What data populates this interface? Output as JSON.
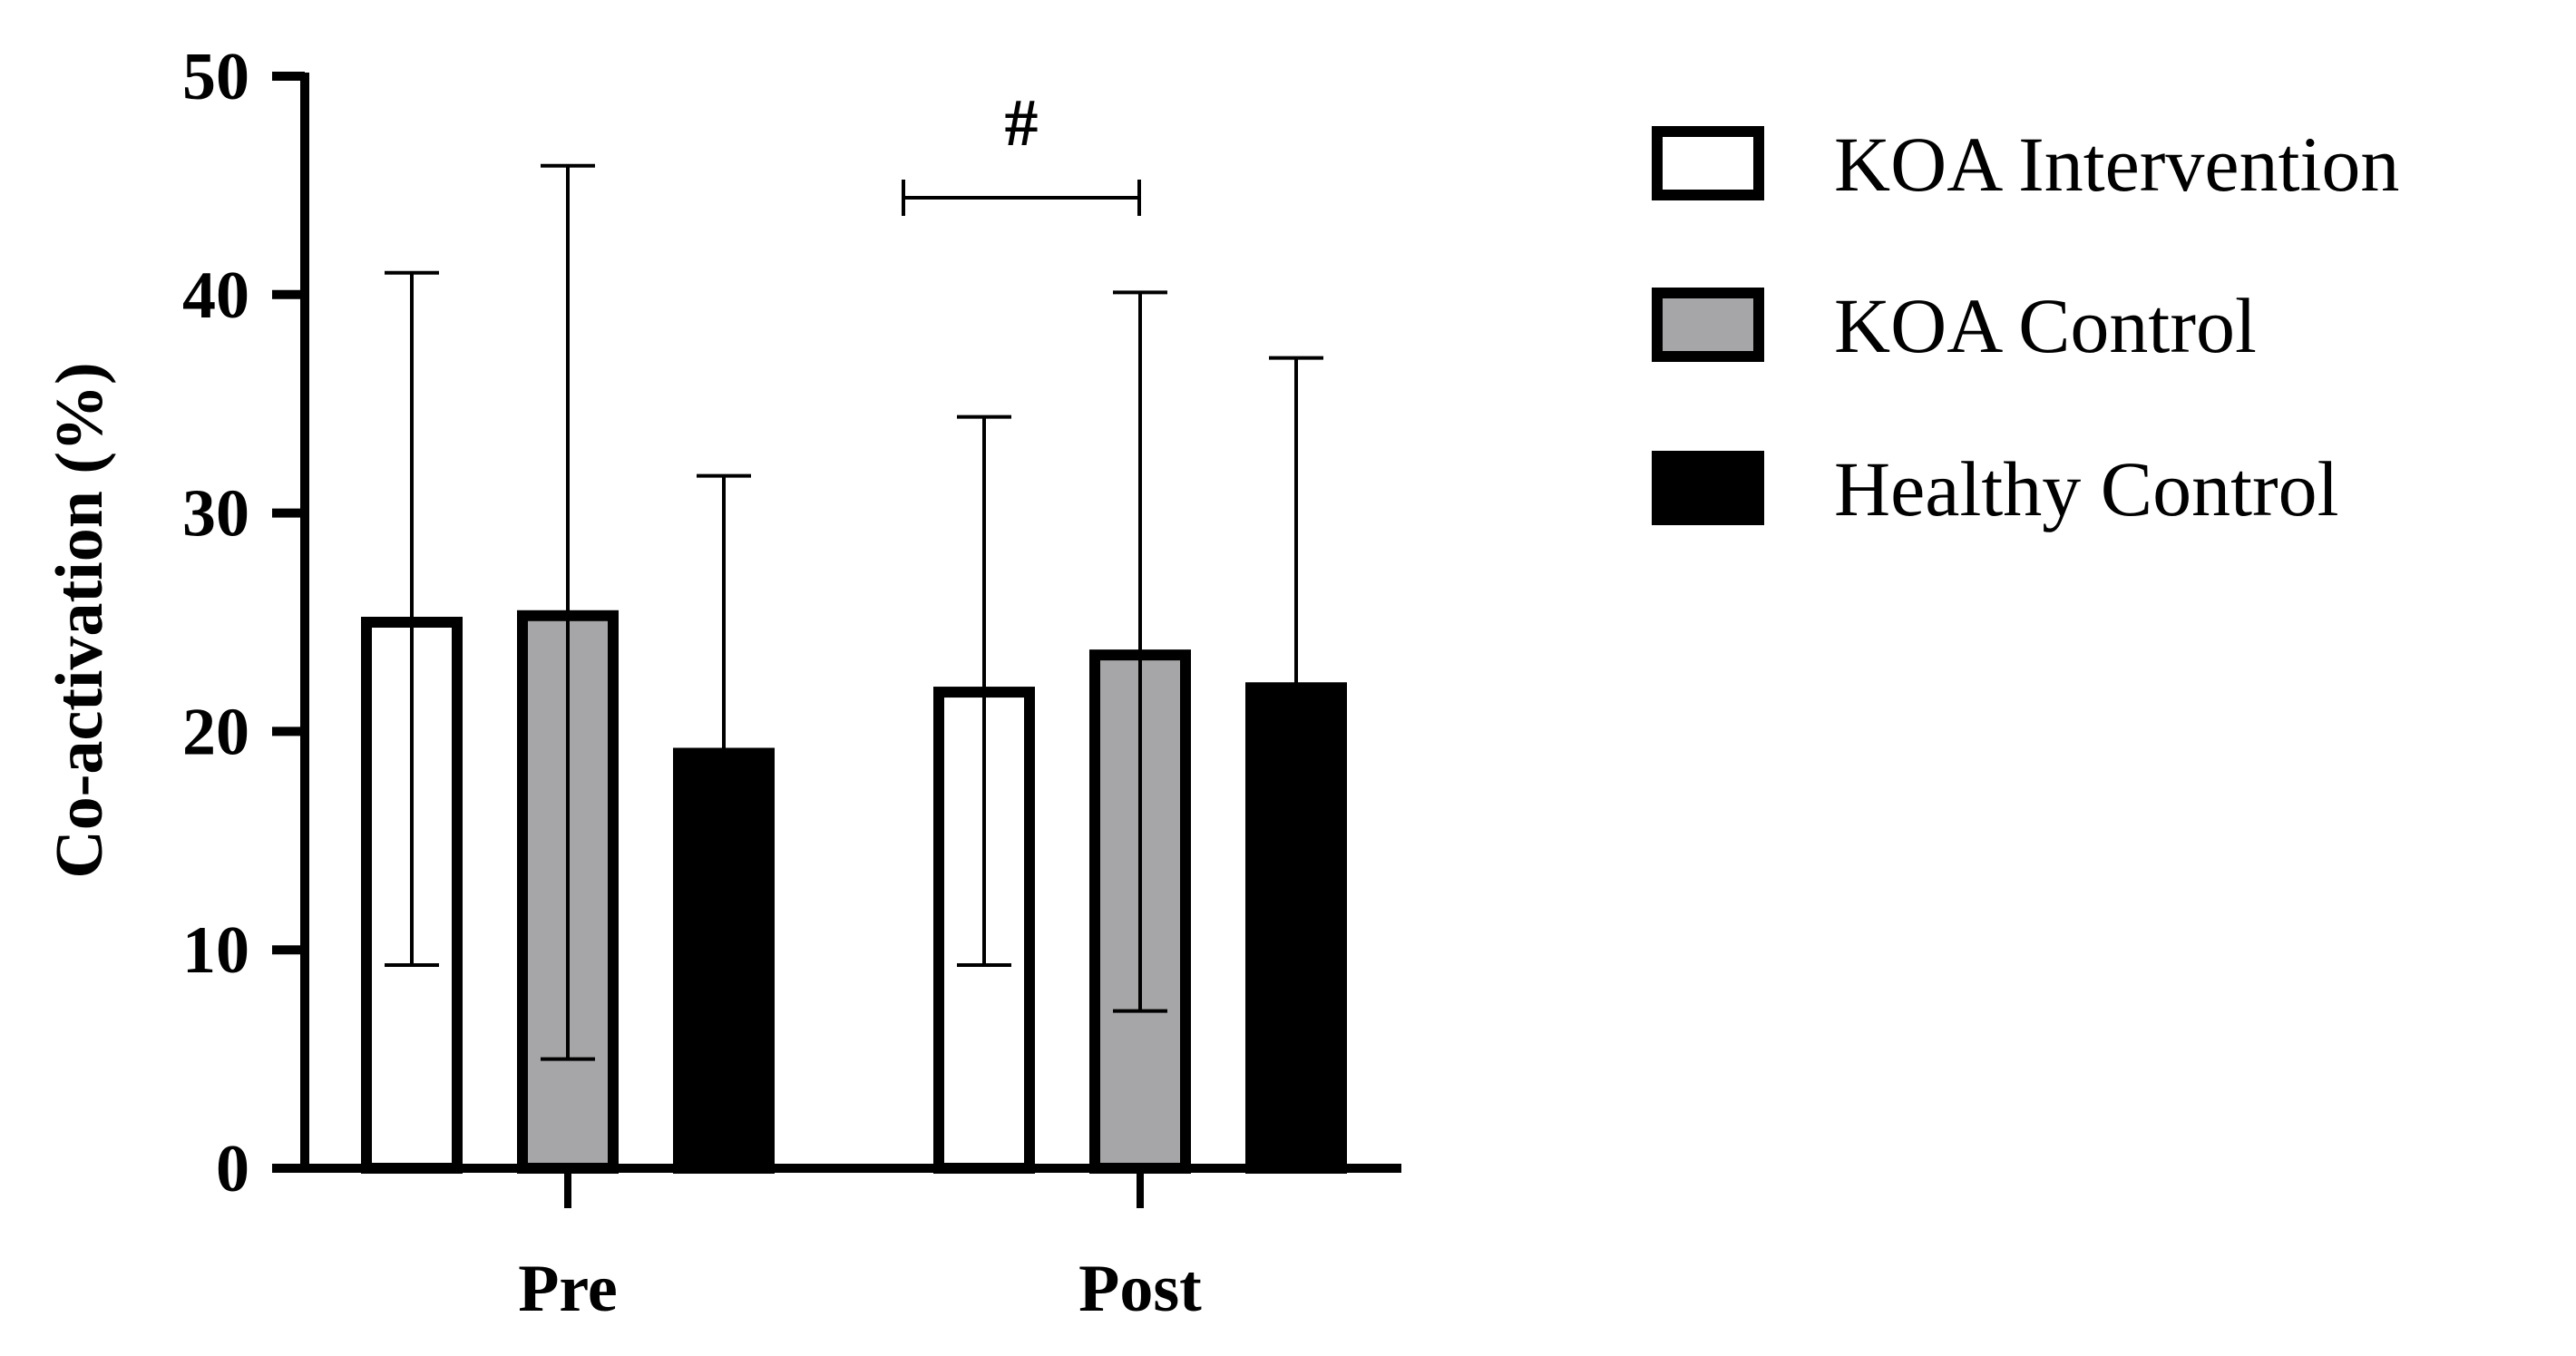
{
  "chart_data": {
    "type": "bar",
    "ylabel": "Co-activation (%)",
    "ylim": [
      0,
      50
    ],
    "yticks": [
      "0",
      "10",
      "20",
      "30",
      "40",
      "50"
    ],
    "categories": [
      "Pre",
      "Post"
    ],
    "series": [
      {
        "name": "KOA Intervention",
        "fill": "#ffffff",
        "stroke": "#000000",
        "values": [
          25.0,
          21.8
        ],
        "err_low": [
          9.3,
          9.3
        ],
        "err_high": [
          41.0,
          34.4
        ]
      },
      {
        "name": "KOA Control",
        "fill": "#a6a6a8",
        "stroke": "#000000",
        "values": [
          25.3,
          23.5
        ],
        "err_low": [
          5.0,
          7.2
        ],
        "err_high": [
          45.9,
          40.1
        ]
      },
      {
        "name": "Healthy Control",
        "fill": "#000000",
        "stroke": "#000000",
        "values": [
          19.0,
          22.0
        ],
        "err_low": [
          null,
          null
        ],
        "err_high": [
          31.7,
          37.1
        ]
      }
    ],
    "annotation": {
      "symbol": "#",
      "between": [
        "Post KOA Intervention",
        "Post KOA Control"
      ]
    },
    "legend_position": "right"
  }
}
